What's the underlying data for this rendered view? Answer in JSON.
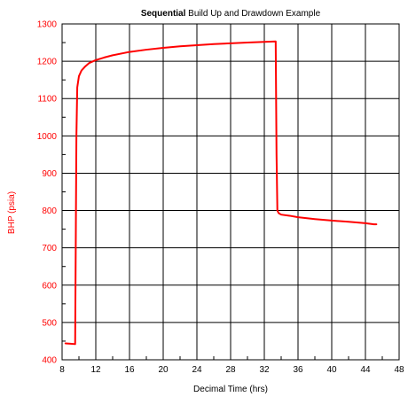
{
  "chart_data": {
    "type": "line",
    "title_bold": "Sequential",
    "title_rest": " Build Up and Drawdown Example",
    "xlabel": "Decimal Time (hrs)",
    "ylabel": "BHP (psia)",
    "xlim": [
      8,
      48
    ],
    "ylim": [
      400,
      1300
    ],
    "xticks": [
      8,
      12,
      16,
      20,
      24,
      28,
      32,
      36,
      40,
      44,
      48
    ],
    "yticks": [
      400,
      500,
      600,
      700,
      800,
      900,
      1000,
      1100,
      1200,
      1300
    ],
    "grid": true,
    "legend": "none",
    "series": [
      {
        "color": "#ff0000",
        "x": [
          8.4,
          9.0,
          9.55,
          9.62,
          9.7,
          9.8,
          10.0,
          10.3,
          10.7,
          11.2,
          12.0,
          13.0,
          14.0,
          16.0,
          18.0,
          20.0,
          22.0,
          24.0,
          26.0,
          28.0,
          30.0,
          32.0,
          33.35,
          33.4,
          33.45,
          33.55,
          33.7,
          34.0,
          35.0,
          36.0,
          38.0,
          40.0,
          42.0,
          44.0,
          45.0,
          45.3
        ],
        "y": [
          444,
          443,
          442,
          700,
          1000,
          1130,
          1160,
          1175,
          1185,
          1195,
          1203,
          1210,
          1216,
          1225,
          1231,
          1236,
          1240,
          1243,
          1246,
          1248,
          1250,
          1252,
          1253,
          1100,
          950,
          800,
          793,
          789,
          786,
          782,
          777,
          773,
          770,
          766,
          763,
          763
        ]
      }
    ]
  }
}
